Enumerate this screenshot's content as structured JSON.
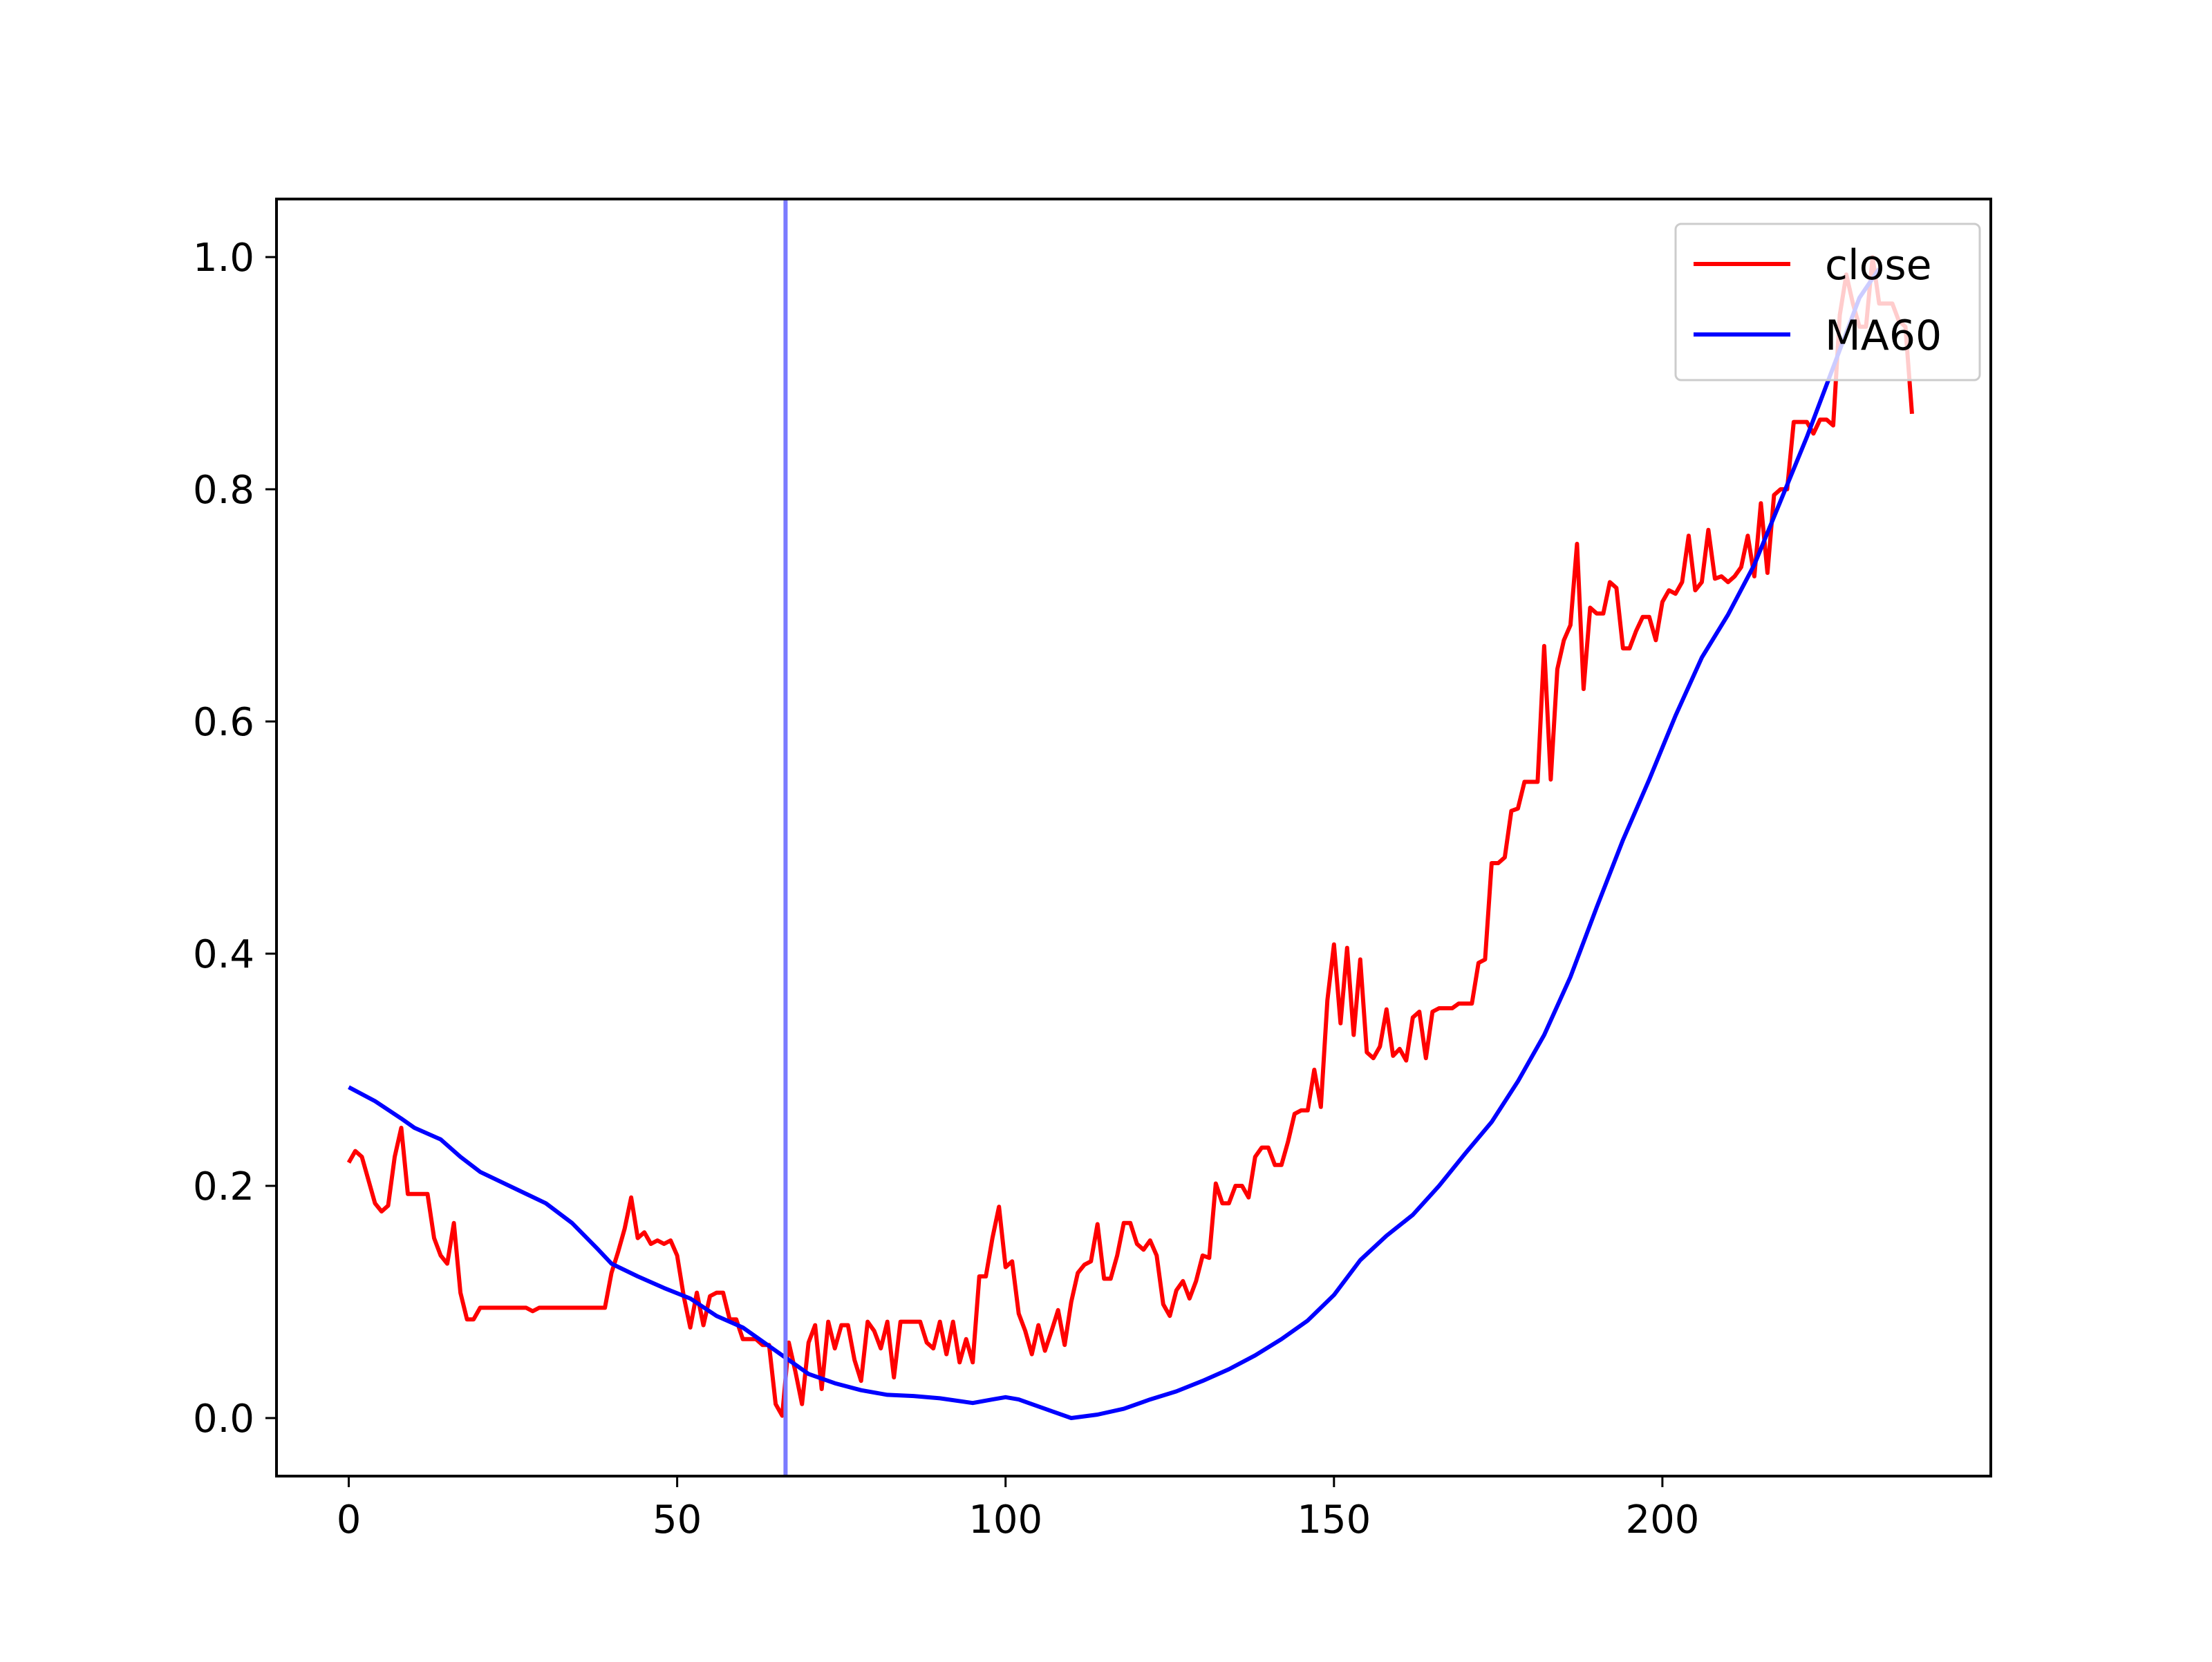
{
  "chart_data": {
    "type": "line",
    "title": "",
    "xlabel": "",
    "ylabel": "",
    "xlim": [
      -11,
      250
    ],
    "ylim": [
      -0.05,
      1.05
    ],
    "xticks": [
      0,
      50,
      100,
      150,
      200
    ],
    "xtick_labels": [
      "0",
      "50",
      "100",
      "150",
      "200"
    ],
    "yticks": [
      0.0,
      0.2,
      0.4,
      0.6,
      0.8,
      1.0
    ],
    "ytick_labels": [
      "0.0",
      "0.2",
      "0.4",
      "0.6",
      "0.8",
      "1.0"
    ],
    "grid": false,
    "legend_position": "upper right",
    "vline": {
      "x": 66.5,
      "color": "#7b7bff"
    },
    "series": [
      {
        "name": "close",
        "color": "#ff0000",
        "points": [
          [
            0,
            0.22
          ],
          [
            1,
            0.23
          ],
          [
            2,
            0.225
          ],
          [
            3,
            0.205
          ],
          [
            4,
            0.185
          ],
          [
            5,
            0.178
          ],
          [
            6,
            0.183
          ],
          [
            7,
            0.225
          ],
          [
            8,
            0.25
          ],
          [
            9,
            0.193
          ],
          [
            10,
            0.193
          ],
          [
            11,
            0.193
          ],
          [
            12,
            0.193
          ],
          [
            13,
            0.155
          ],
          [
            14,
            0.14
          ],
          [
            15,
            0.133
          ],
          [
            16,
            0.168
          ],
          [
            17,
            0.108
          ],
          [
            18,
            0.085
          ],
          [
            19,
            0.085
          ],
          [
            20,
            0.095
          ],
          [
            21,
            0.095
          ],
          [
            22,
            0.095
          ],
          [
            23,
            0.095
          ],
          [
            24,
            0.095
          ],
          [
            25,
            0.095
          ],
          [
            26,
            0.095
          ],
          [
            27,
            0.095
          ],
          [
            28,
            0.092
          ],
          [
            29,
            0.095
          ],
          [
            30,
            0.095
          ],
          [
            31,
            0.095
          ],
          [
            32,
            0.095
          ],
          [
            33,
            0.095
          ],
          [
            34,
            0.095
          ],
          [
            35,
            0.095
          ],
          [
            36,
            0.095
          ],
          [
            37,
            0.095
          ],
          [
            38,
            0.095
          ],
          [
            39,
            0.095
          ],
          [
            40,
            0.125
          ],
          [
            41,
            0.143
          ],
          [
            42,
            0.163
          ],
          [
            43,
            0.19
          ],
          [
            44,
            0.155
          ],
          [
            45,
            0.16
          ],
          [
            46,
            0.15
          ],
          [
            47,
            0.153
          ],
          [
            48,
            0.15
          ],
          [
            49,
            0.153
          ],
          [
            50,
            0.14
          ],
          [
            51,
            0.105
          ],
          [
            52,
            0.078
          ],
          [
            53,
            0.108
          ],
          [
            54,
            0.08
          ],
          [
            55,
            0.105
          ],
          [
            56,
            0.108
          ],
          [
            57,
            0.108
          ],
          [
            58,
            0.085
          ],
          [
            59,
            0.085
          ],
          [
            60,
            0.068
          ],
          [
            61,
            0.068
          ],
          [
            62,
            0.068
          ],
          [
            63,
            0.063
          ],
          [
            64,
            0.063
          ],
          [
            65,
            0.012
          ],
          [
            66,
            0.002
          ],
          [
            67,
            0.065
          ],
          [
            68,
            0.04
          ],
          [
            69,
            0.012
          ],
          [
            70,
            0.065
          ],
          [
            71,
            0.08
          ],
          [
            72,
            0.025
          ],
          [
            73,
            0.083
          ],
          [
            74,
            0.06
          ],
          [
            75,
            0.08
          ],
          [
            76,
            0.08
          ],
          [
            77,
            0.05
          ],
          [
            78,
            0.032
          ],
          [
            79,
            0.083
          ],
          [
            80,
            0.075
          ],
          [
            81,
            0.06
          ],
          [
            82,
            0.083
          ],
          [
            83,
            0.035
          ],
          [
            84,
            0.083
          ],
          [
            85,
            0.083
          ],
          [
            86,
            0.083
          ],
          [
            87,
            0.083
          ],
          [
            88,
            0.065
          ],
          [
            89,
            0.06
          ],
          [
            90,
            0.083
          ],
          [
            91,
            0.055
          ],
          [
            92,
            0.083
          ],
          [
            93,
            0.048
          ],
          [
            94,
            0.068
          ],
          [
            95,
            0.048
          ],
          [
            96,
            0.122
          ],
          [
            97,
            0.122
          ],
          [
            98,
            0.155
          ],
          [
            99,
            0.182
          ],
          [
            100,
            0.13
          ],
          [
            101,
            0.135
          ],
          [
            102,
            0.09
          ],
          [
            103,
            0.075
          ],
          [
            104,
            0.055
          ],
          [
            105,
            0.08
          ],
          [
            106,
            0.058
          ],
          [
            107,
            0.075
          ],
          [
            108,
            0.093
          ],
          [
            109,
            0.063
          ],
          [
            110,
            0.1
          ],
          [
            111,
            0.125
          ],
          [
            112,
            0.132
          ],
          [
            113,
            0.135
          ],
          [
            114,
            0.167
          ],
          [
            115,
            0.12
          ],
          [
            116,
            0.12
          ],
          [
            117,
            0.14
          ],
          [
            118,
            0.168
          ],
          [
            119,
            0.168
          ],
          [
            120,
            0.15
          ],
          [
            121,
            0.145
          ],
          [
            122,
            0.153
          ],
          [
            123,
            0.14
          ],
          [
            124,
            0.098
          ],
          [
            125,
            0.088
          ],
          [
            126,
            0.11
          ],
          [
            127,
            0.118
          ],
          [
            128,
            0.103
          ],
          [
            129,
            0.118
          ],
          [
            130,
            0.14
          ],
          [
            131,
            0.138
          ],
          [
            132,
            0.202
          ],
          [
            133,
            0.185
          ],
          [
            134,
            0.185
          ],
          [
            135,
            0.2
          ],
          [
            136,
            0.2
          ],
          [
            137,
            0.19
          ],
          [
            138,
            0.225
          ],
          [
            139,
            0.233
          ],
          [
            140,
            0.233
          ],
          [
            141,
            0.218
          ],
          [
            142,
            0.218
          ],
          [
            143,
            0.238
          ],
          [
            144,
            0.262
          ],
          [
            145,
            0.265
          ],
          [
            146,
            0.265
          ],
          [
            147,
            0.3
          ],
          [
            148,
            0.268
          ],
          [
            149,
            0.36
          ],
          [
            150,
            0.408
          ],
          [
            151,
            0.34
          ],
          [
            152,
            0.405
          ],
          [
            153,
            0.33
          ],
          [
            154,
            0.395
          ],
          [
            155,
            0.315
          ],
          [
            156,
            0.31
          ],
          [
            157,
            0.32
          ],
          [
            158,
            0.352
          ],
          [
            159,
            0.312
          ],
          [
            160,
            0.318
          ],
          [
            161,
            0.308
          ],
          [
            162,
            0.345
          ],
          [
            163,
            0.35
          ],
          [
            164,
            0.31
          ],
          [
            165,
            0.35
          ],
          [
            166,
            0.353
          ],
          [
            167,
            0.353
          ],
          [
            168,
            0.353
          ],
          [
            169,
            0.357
          ],
          [
            170,
            0.357
          ],
          [
            171,
            0.357
          ],
          [
            172,
            0.392
          ],
          [
            173,
            0.395
          ],
          [
            174,
            0.478
          ],
          [
            175,
            0.478
          ],
          [
            176,
            0.483
          ],
          [
            177,
            0.523
          ],
          [
            178,
            0.525
          ],
          [
            179,
            0.548
          ],
          [
            180,
            0.548
          ],
          [
            181,
            0.548
          ],
          [
            182,
            0.665
          ],
          [
            183,
            0.55
          ],
          [
            184,
            0.645
          ],
          [
            185,
            0.67
          ],
          [
            186,
            0.683
          ],
          [
            187,
            0.753
          ],
          [
            188,
            0.628
          ],
          [
            189,
            0.698
          ],
          [
            190,
            0.693
          ],
          [
            191,
            0.693
          ],
          [
            192,
            0.72
          ],
          [
            193,
            0.715
          ],
          [
            194,
            0.663
          ],
          [
            195,
            0.663
          ],
          [
            196,
            0.678
          ],
          [
            197,
            0.69
          ],
          [
            198,
            0.69
          ],
          [
            199,
            0.67
          ],
          [
            200,
            0.703
          ],
          [
            201,
            0.713
          ],
          [
            202,
            0.71
          ],
          [
            203,
            0.72
          ],
          [
            204,
            0.76
          ],
          [
            205,
            0.713
          ],
          [
            206,
            0.72
          ],
          [
            207,
            0.765
          ],
          [
            208,
            0.723
          ],
          [
            209,
            0.725
          ],
          [
            210,
            0.72
          ],
          [
            211,
            0.725
          ],
          [
            212,
            0.733
          ],
          [
            213,
            0.76
          ],
          [
            214,
            0.725
          ],
          [
            215,
            0.788
          ],
          [
            216,
            0.728
          ],
          [
            217,
            0.795
          ],
          [
            218,
            0.8
          ],
          [
            219,
            0.8
          ],
          [
            220,
            0.858
          ],
          [
            221,
            0.858
          ],
          [
            222,
            0.858
          ],
          [
            223,
            0.848
          ],
          [
            224,
            0.86
          ],
          [
            225,
            0.86
          ],
          [
            226,
            0.855
          ],
          [
            227,
            0.95
          ],
          [
            228,
            0.985
          ],
          [
            229,
            0.96
          ],
          [
            230,
            0.94
          ],
          [
            231,
            0.94
          ],
          [
            232,
            1.0
          ],
          [
            233,
            0.96
          ],
          [
            234,
            0.96
          ],
          [
            235,
            0.96
          ],
          [
            236,
            0.945
          ],
          [
            237,
            0.94
          ],
          [
            238,
            0.865
          ]
        ]
      },
      {
        "name": "MA60",
        "color": "#0000ff",
        "points": [
          [
            0,
            0.285
          ],
          [
            4,
            0.273
          ],
          [
            8,
            0.258
          ],
          [
            10,
            0.25
          ],
          [
            14,
            0.24
          ],
          [
            17,
            0.225
          ],
          [
            20,
            0.212
          ],
          [
            30,
            0.185
          ],
          [
            34,
            0.168
          ],
          [
            38,
            0.145
          ],
          [
            40,
            0.133
          ],
          [
            44,
            0.122
          ],
          [
            48,
            0.112
          ],
          [
            52,
            0.103
          ],
          [
            56,
            0.088
          ],
          [
            60,
            0.078
          ],
          [
            64,
            0.062
          ],
          [
            67,
            0.05
          ],
          [
            70,
            0.038
          ],
          [
            74,
            0.03
          ],
          [
            78,
            0.024
          ],
          [
            82,
            0.02
          ],
          [
            86,
            0.019
          ],
          [
            90,
            0.017
          ],
          [
            95,
            0.013
          ],
          [
            98,
            0.016
          ],
          [
            100,
            0.018
          ],
          [
            102,
            0.016
          ],
          [
            106,
            0.008
          ],
          [
            110,
            0.0
          ],
          [
            114,
            0.003
          ],
          [
            118,
            0.008
          ],
          [
            122,
            0.016
          ],
          [
            126,
            0.023
          ],
          [
            130,
            0.032
          ],
          [
            134,
            0.042
          ],
          [
            138,
            0.054
          ],
          [
            142,
            0.068
          ],
          [
            146,
            0.084
          ],
          [
            150,
            0.106
          ],
          [
            154,
            0.136
          ],
          [
            158,
            0.157
          ],
          [
            162,
            0.175
          ],
          [
            166,
            0.2
          ],
          [
            170,
            0.228
          ],
          [
            174,
            0.255
          ],
          [
            178,
            0.29
          ],
          [
            182,
            0.33
          ],
          [
            186,
            0.38
          ],
          [
            190,
            0.44
          ],
          [
            194,
            0.498
          ],
          [
            198,
            0.55
          ],
          [
            202,
            0.605
          ],
          [
            206,
            0.655
          ],
          [
            210,
            0.692
          ],
          [
            214,
            0.735
          ],
          [
            218,
            0.79
          ],
          [
            222,
            0.845
          ],
          [
            226,
            0.905
          ],
          [
            230,
            0.965
          ],
          [
            233,
            0.99
          ]
        ]
      }
    ]
  }
}
